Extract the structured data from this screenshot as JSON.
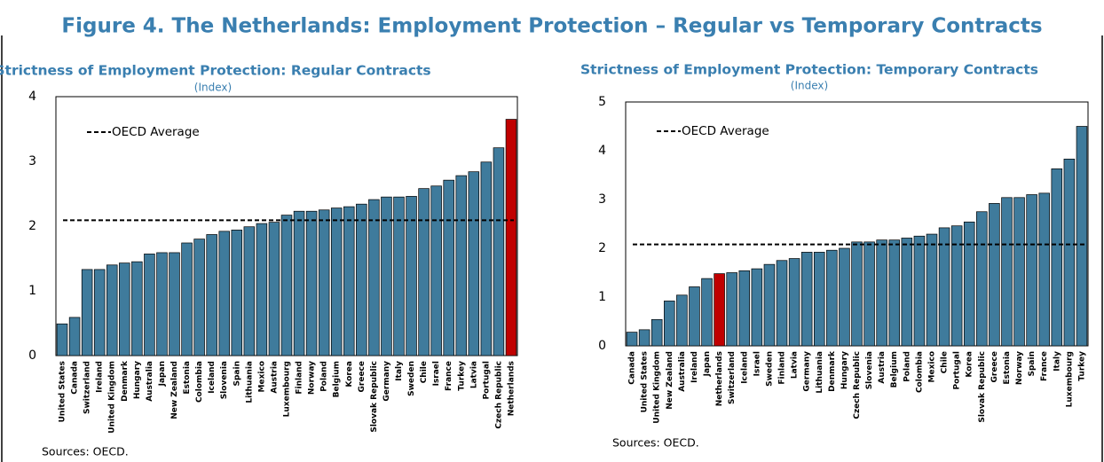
{
  "title": "Figure 4. The Netherlands: Employment Protection – Regular vs Temporary Contracts",
  "chart_data": [
    {
      "type": "bar",
      "title": "Strictness of Employment Protection: Regular Contracts",
      "subtitle": "(Index)",
      "categories": [
        "United States",
        "Canada",
        "Switzerland",
        "Ireland",
        "United Kingdom",
        "Denmark",
        "Hungary",
        "Australia",
        "Japan",
        "New Zealand",
        "Estonia",
        "Colombia",
        "Iceland",
        "Slovenia",
        "Spain",
        "Lithuania",
        "Mexico",
        "Austria",
        "Luxembourg",
        "Finland",
        "Norway",
        "Poland",
        "Belgium",
        "Korea",
        "Greece",
        "Slovak Republic",
        "Germany",
        "Italy",
        "Sweden",
        "Chile",
        "Israel",
        "France",
        "Turkey",
        "Latvia",
        "Portugal",
        "Czech Republic",
        "Netherlands"
      ],
      "values": [
        0.49,
        0.59,
        1.33,
        1.33,
        1.4,
        1.43,
        1.45,
        1.57,
        1.59,
        1.59,
        1.74,
        1.8,
        1.87,
        1.92,
        1.94,
        1.99,
        2.04,
        2.06,
        2.17,
        2.23,
        2.23,
        2.25,
        2.28,
        2.3,
        2.34,
        2.41,
        2.45,
        2.45,
        2.46,
        2.58,
        2.62,
        2.71,
        2.78,
        2.84,
        2.99,
        3.21,
        3.65
      ],
      "color": "#3f7b9c",
      "highlight": {
        "category": "Netherlands",
        "color": "#c00000"
      },
      "reference_line": {
        "label": "OECD Average",
        "value": 2.09
      },
      "ylim": [
        0,
        4
      ],
      "yticks": [
        0,
        1,
        2,
        3,
        4
      ],
      "grid": false,
      "note": "Sources: OECD."
    },
    {
      "type": "bar",
      "title": "Strictness of Employment Protection: Temporary Contracts",
      "subtitle": "(Index)",
      "categories": [
        "Canada",
        "United States",
        "United Kingdom",
        "New Zealand",
        "Australia",
        "Ireland",
        "Japan",
        "Netherlands",
        "Switzerland",
        "Iceland",
        "Israel",
        "Sweden",
        "Finland",
        "Latvia",
        "Germany",
        "Lithuania",
        "Denmark",
        "Hungary",
        "Czech Republic",
        "Slovenia",
        "Austria",
        "Belgium",
        "Poland",
        "Colombia",
        "Mexico",
        "Chile",
        "Portugal",
        "Korea",
        "Slovak Republic",
        "Greece",
        "Estonia",
        "Norway",
        "Spain",
        "France",
        "Italy",
        "Luxembourg",
        "Turkey"
      ],
      "values": [
        0.28,
        0.33,
        0.54,
        0.92,
        1.04,
        1.21,
        1.38,
        1.48,
        1.5,
        1.54,
        1.58,
        1.67,
        1.75,
        1.79,
        1.92,
        1.92,
        1.96,
        2.0,
        2.13,
        2.13,
        2.17,
        2.17,
        2.21,
        2.25,
        2.29,
        2.42,
        2.46,
        2.54,
        2.75,
        2.92,
        3.04,
        3.04,
        3.1,
        3.13,
        3.63,
        3.83,
        4.5
      ],
      "color": "#3f7b9c",
      "highlight": {
        "category": "Netherlands",
        "color": "#c00000"
      },
      "reference_line": {
        "label": "OECD Average",
        "value": 2.08
      },
      "ylim": [
        0,
        5
      ],
      "yticks": [
        0,
        1,
        2,
        3,
        4,
        5
      ],
      "grid": false,
      "note": "Sources: OECD."
    }
  ]
}
